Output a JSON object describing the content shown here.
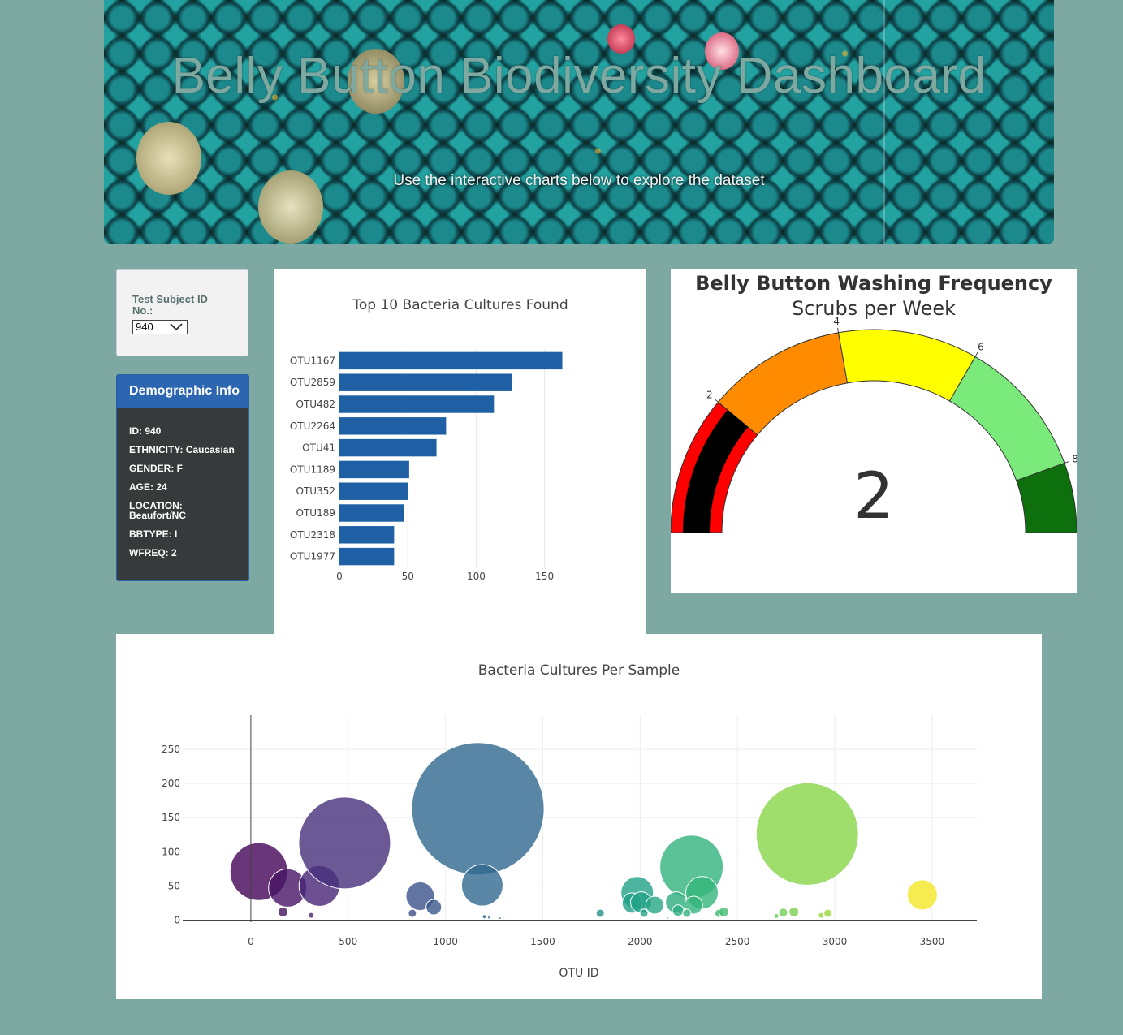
{
  "header": {
    "title": "Belly Button Biodiversity Dashboard",
    "subtitle": "Use the interactive charts below to explore the dataset"
  },
  "selector": {
    "label": "Test Subject ID No.:",
    "selected": "940"
  },
  "demographics": {
    "title": "Demographic Info",
    "items": [
      "ID: 940",
      "ETHNICITY: Caucasian",
      "GENDER: F",
      "AGE: 24",
      "LOCATION: Beaufort/NC",
      "BBTYPE: I",
      "WFREQ: 2"
    ]
  },
  "colors": {
    "background": "#7ea8a2",
    "bar": "#1f5fa4",
    "panel_heading": "#2d66b0",
    "panel_body": "#363a3a"
  },
  "chart_data": [
    {
      "type": "bar",
      "title": "Top 10 Bacteria Cultures Found",
      "orientation": "horizontal",
      "categories": [
        "OTU1167",
        "OTU2859",
        "OTU482",
        "OTU2264",
        "OTU41",
        "OTU1189",
        "OTU352",
        "OTU189",
        "OTU2318",
        "OTU1977"
      ],
      "values": [
        163,
        126,
        113,
        78,
        71,
        51,
        50,
        47,
        40,
        40
      ],
      "xticks": [
        0,
        50,
        100,
        150
      ],
      "xlim": [
        0,
        171
      ]
    },
    {
      "type": "gauge",
      "title": "Belly Button Washing Frequency",
      "subtitle": "Scrubs per Week",
      "value": 2,
      "value_label": "2",
      "range": [
        0,
        9
      ],
      "ticks": [
        2,
        4,
        6,
        8
      ],
      "bands": [
        {
          "from": 0,
          "to": 2,
          "color": "#ff0000"
        },
        {
          "from": 2,
          "to": 4,
          "color": "#ff8c00"
        },
        {
          "from": 4,
          "to": 6,
          "color": "#ffff00"
        },
        {
          "from": 6,
          "to": 8,
          "color": "#7aea7a"
        },
        {
          "from": 8,
          "to": 9,
          "color": "#0d700d"
        }
      ],
      "bar_color": "#000000"
    },
    {
      "type": "scatter",
      "title": "Bacteria Cultures Per Sample",
      "xlabel": "OTU ID",
      "ylabel": "",
      "xlim": [
        -350,
        3730
      ],
      "ylim": [
        -3,
        300
      ],
      "xticks": [
        0,
        500,
        1000,
        1500,
        2000,
        2500,
        3000,
        3500
      ],
      "yticks": [
        0,
        50,
        100,
        150,
        200,
        250
      ],
      "colorscale": "viridis",
      "points": [
        {
          "x": 41,
          "y": 71
        },
        {
          "x": 189,
          "y": 47
        },
        {
          "x": 352,
          "y": 50
        },
        {
          "x": 482,
          "y": 113
        },
        {
          "x": 165,
          "y": 12
        },
        {
          "x": 310,
          "y": 7
        },
        {
          "x": 870,
          "y": 35
        },
        {
          "x": 940,
          "y": 19
        },
        {
          "x": 830,
          "y": 10
        },
        {
          "x": 1167,
          "y": 163
        },
        {
          "x": 1189,
          "y": 51
        },
        {
          "x": 1795,
          "y": 10
        },
        {
          "x": 1985,
          "y": 40
        },
        {
          "x": 1960,
          "y": 25
        },
        {
          "x": 2005,
          "y": 26
        },
        {
          "x": 2075,
          "y": 22
        },
        {
          "x": 2020,
          "y": 10
        },
        {
          "x": 2264,
          "y": 78
        },
        {
          "x": 2318,
          "y": 40
        },
        {
          "x": 2185,
          "y": 26
        },
        {
          "x": 2275,
          "y": 22
        },
        {
          "x": 2195,
          "y": 14
        },
        {
          "x": 2240,
          "y": 10
        },
        {
          "x": 2405,
          "y": 10
        },
        {
          "x": 2430,
          "y": 12
        },
        {
          "x": 2859,
          "y": 126
        },
        {
          "x": 2735,
          "y": 11
        },
        {
          "x": 2790,
          "y": 12
        },
        {
          "x": 2965,
          "y": 10
        },
        {
          "x": 3450,
          "y": 37
        },
        {
          "x": 1200,
          "y": 5
        },
        {
          "x": 1225,
          "y": 4
        },
        {
          "x": 1280,
          "y": 3
        },
        {
          "x": 2140,
          "y": 3
        },
        {
          "x": 2700,
          "y": 6
        },
        {
          "x": 2930,
          "y": 7
        }
      ]
    }
  ]
}
